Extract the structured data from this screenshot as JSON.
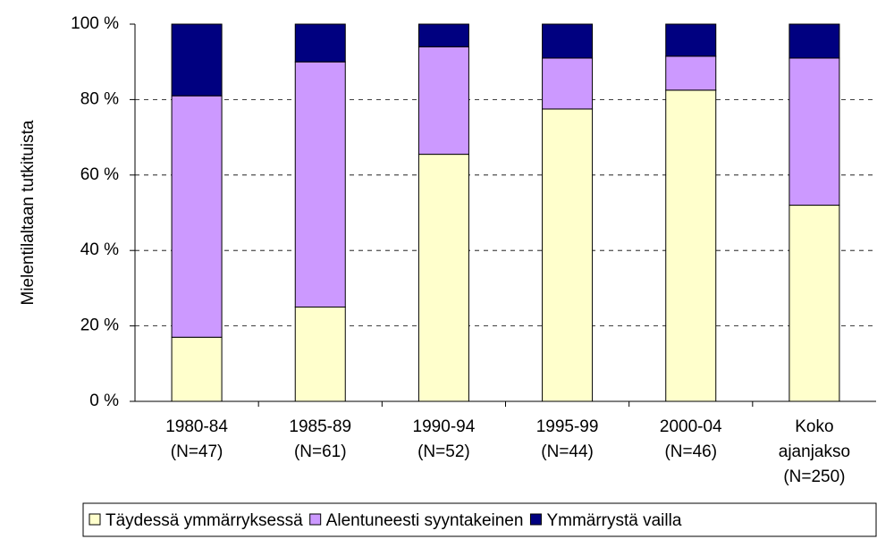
{
  "chart_data": {
    "type": "stacked_bar",
    "y_label": "Mielentilaltaan tutkituista",
    "categories": [
      "1980-84\n(N=47)",
      "1985-89\n(N=61)",
      "1990-94\n(N=52)",
      "1995-99\n(N=44)",
      "2000-04\n(N=46)",
      "Koko\najanjakso\n(N=250)"
    ],
    "series": [
      {
        "name": "Täydessä ymmärryksessä",
        "color": "#ffffcc",
        "values": [
          17,
          25,
          65.5,
          77.5,
          82.5,
          52
        ]
      },
      {
        "name": "Alentuneesti syyntakeinen",
        "color": "#cc99ff",
        "values": [
          64,
          65,
          28.5,
          13.5,
          9,
          39
        ]
      },
      {
        "name": "Ymmärrystä vailla",
        "color": "#000080",
        "values": [
          19,
          10,
          6,
          9,
          8.5,
          9
        ]
      }
    ],
    "ylim": [
      0,
      100
    ],
    "yticks": [
      {
        "value": 0,
        "label": "0 %"
      },
      {
        "value": 20,
        "label": "20 %"
      },
      {
        "value": 40,
        "label": "40 %"
      },
      {
        "value": 60,
        "label": "60 %"
      },
      {
        "value": 80,
        "label": "80 %"
      },
      {
        "value": 100,
        "label": "100 %"
      }
    ],
    "grid": true,
    "legend": "bottom"
  }
}
